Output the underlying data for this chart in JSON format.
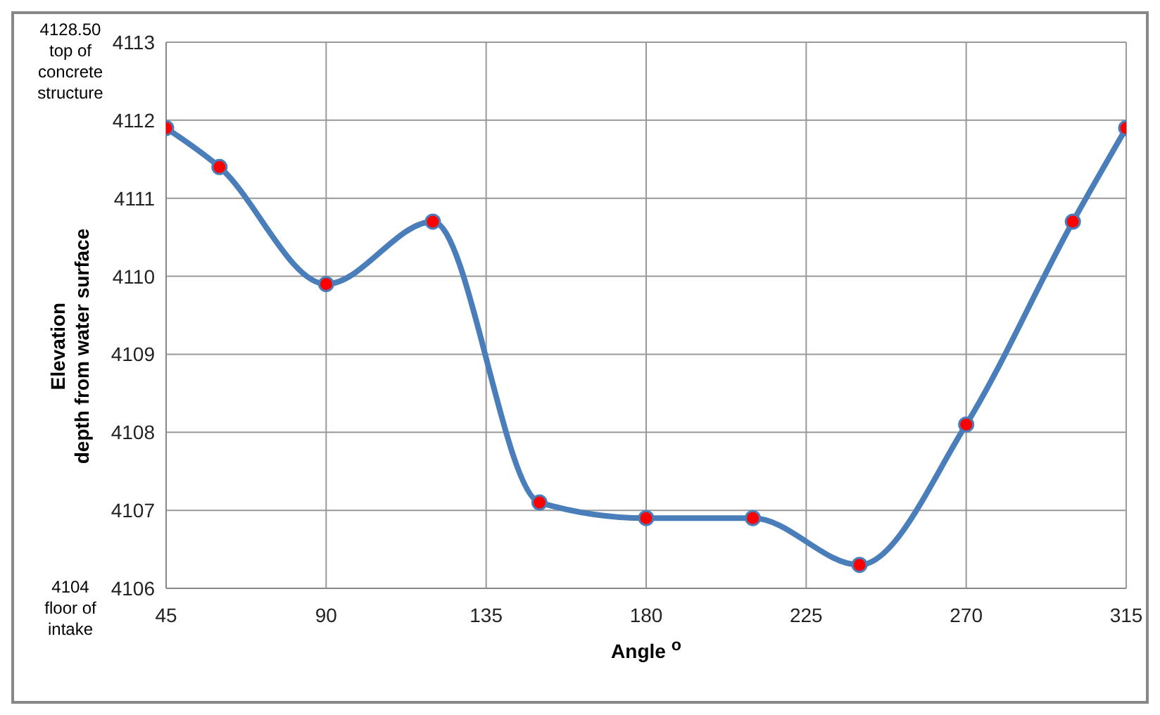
{
  "chart_data": {
    "type": "line",
    "xlabel": "Angle $^{o}$",
    "ylabel": "Elevation\ndepth from water surface",
    "annotations": [
      "4128.50\ntop of\nconcrete\nstructure",
      "4104\nfloor of\nintake"
    ],
    "x": [
      45,
      60,
      90,
      120,
      150,
      180,
      210,
      240,
      270,
      300,
      315
    ],
    "series": [
      {
        "color": "#4a7ebb",
        "colors": [
          "#ff0000",
          "#ff0000",
          "#ff0000",
          "#ff0000",
          "#ff0000",
          "#ff0000",
          "#ff0000",
          "#ff0000",
          "#ff0000",
          "#ff0000",
          "#ff0000"
        ],
        "values": [
          4111.9,
          4111.4,
          4109.9,
          4110.7,
          4107.1,
          4106.9,
          4106.9,
          4106.3,
          4108.1,
          4110.7,
          4111.9
        ]
      }
    ],
    "xlim": [
      45,
      315
    ],
    "xticks": [
      45,
      90,
      135,
      180,
      225,
      270,
      315
    ],
    "ylim": [
      4106,
      4113
    ],
    "yticks": [
      4106,
      4107,
      4108,
      4109,
      4110,
      4111,
      4112,
      4113
    ],
    "grid": true,
    "marker": "circle",
    "line_style": "solid"
  }
}
